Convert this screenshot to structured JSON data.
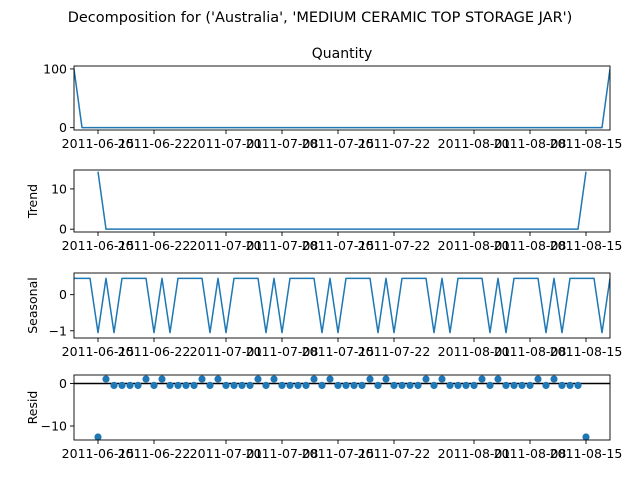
{
  "figure": {
    "suptitle": "Decomposition for ('Australia', 'MEDIUM CERAMIC TOP STORAGE JAR')"
  },
  "chart_data": [
    {
      "type": "line",
      "title": "Quantity",
      "ylabel": "",
      "xlim": [
        "2011-06-12",
        "2011-08-18"
      ],
      "ylim": [
        -4,
        105
      ],
      "yticks": [
        0,
        100
      ],
      "color": "#1f77b4",
      "points": [
        [
          "2011-06-12",
          100
        ],
        [
          "2011-06-13",
          0
        ],
        [
          "2011-08-17",
          0
        ],
        [
          "2011-08-18",
          100
        ]
      ]
    },
    {
      "type": "line",
      "title": "",
      "ylabel": "Trend",
      "xlim": [
        "2011-06-12",
        "2011-08-18"
      ],
      "ylim": [
        -0.7,
        14.7
      ],
      "yticks": [
        0,
        10
      ],
      "color": "#1f77b4",
      "points": [
        [
          "2011-06-15",
          14.3
        ],
        [
          "2011-06-16",
          0
        ],
        [
          "2011-08-14",
          0
        ],
        [
          "2011-08-15",
          14.3
        ]
      ]
    },
    {
      "type": "line",
      "title": "",
      "ylabel": "Seasonal",
      "xlim": [
        "2011-06-12",
        "2011-08-18"
      ],
      "ylim": [
        -1.2,
        0.6
      ],
      "yticks": [
        -1,
        0
      ],
      "color": "#1f77b4",
      "start": "2011-06-12",
      "end": "2011-08-18",
      "weekly_pattern": [
        0.45,
        0.45,
        0.45,
        -1.05,
        0.45,
        -1.05,
        0.45
      ]
    },
    {
      "type": "scatter",
      "title": "",
      "ylabel": "Resid",
      "xlim": [
        "2011-06-12",
        "2011-08-18"
      ],
      "ylim": [
        -13.3,
        2.0
      ],
      "yticks": [
        -10,
        0
      ],
      "color": "#1f77b4",
      "baseline": 0,
      "start": "2011-06-15",
      "end": "2011-08-15",
      "weekly_pattern": [
        -0.45,
        1.05,
        -0.45,
        -0.45,
        -0.45,
        -0.45,
        1.05
      ],
      "outliers": [
        [
          "2011-06-15",
          -12.6
        ],
        [
          "2011-08-15",
          -12.6
        ]
      ]
    }
  ],
  "xaxis": {
    "tick_dates": [
      "2011-06-15",
      "2011-06-22",
      "2011-07-01",
      "2011-07-08",
      "2011-07-15",
      "2011-07-22",
      "2011-08-01",
      "2011-08-08",
      "2011-08-15"
    ],
    "tick_labels": [
      "2011-06-15",
      "2011-06-22",
      "2011-07-01",
      "2011-07-08",
      "2011-07-15",
      "2011-07-22",
      "2011-08-01",
      "2011-08-08",
      "2011-08-15"
    ]
  }
}
